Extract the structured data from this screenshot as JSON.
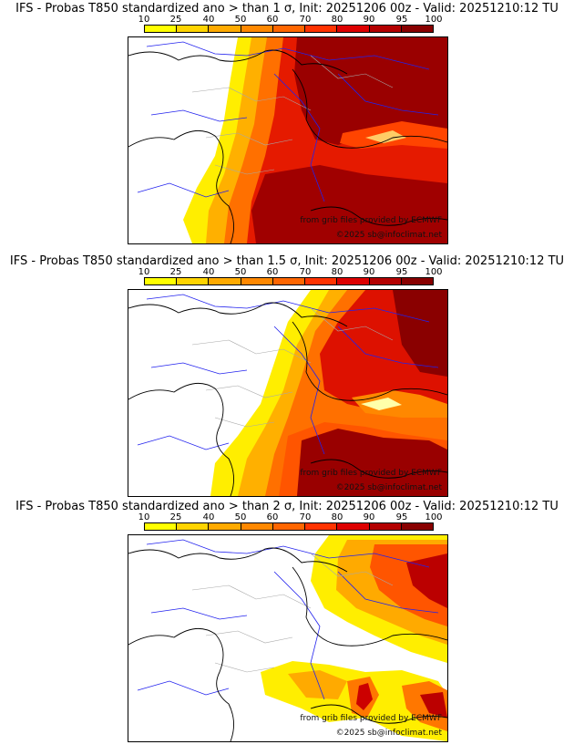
{
  "panels": [
    {
      "title": "IFS - Probas T850  standardized ano > than 1 σ, Init: 20251206 00z - Valid: 20251210:12 TU"
    },
    {
      "title": "IFS - Probas T850  standardized ano > than 1.5 σ, Init: 20251206 00z - Valid: 20251210:12 TU"
    },
    {
      "title": "IFS - Probas T850  standardized ano > than 2 σ, Init: 20251206 00z - Valid: 20251210:12 TU"
    }
  ],
  "colorbar": {
    "ticks": [
      "10",
      "25",
      "40",
      "50",
      "60",
      "70",
      "80",
      "90",
      "95",
      "100"
    ],
    "colors": [
      "#ffff00",
      "#ffd400",
      "#ffaa00",
      "#ff8800",
      "#ff6600",
      "#ff3300",
      "#dd0000",
      "#b30000",
      "#880000"
    ]
  },
  "credits": {
    "source": "from grib files provided by ECMWF",
    "copyright": "©2025 sb@infoclimat.net"
  },
  "colors": {
    "border_country": "#000000",
    "border_region": "#a8a8a8",
    "rivers": "#2222ee"
  }
}
